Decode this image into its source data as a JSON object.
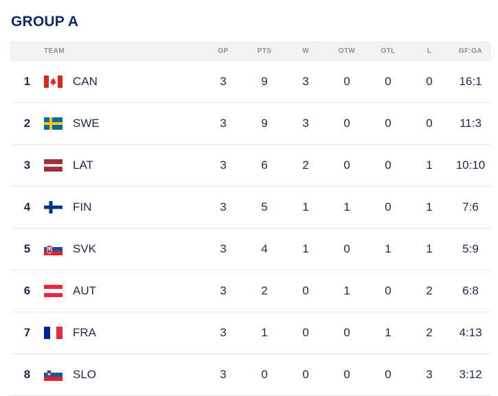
{
  "title": "GROUP A",
  "columns": {
    "team": "TEAM",
    "gp": "GP",
    "pts": "PTS",
    "w": "W",
    "otw": "OTW",
    "otl": "OTL",
    "l": "L",
    "gfga": "GF:GA"
  },
  "rows": [
    {
      "rank": "1",
      "flag": "canada-flag-icon",
      "team": "CAN",
      "gp": "3",
      "pts": "9",
      "w": "3",
      "otw": "0",
      "otl": "0",
      "l": "0",
      "gfga": "16:1"
    },
    {
      "rank": "2",
      "flag": "sweden-flag-icon",
      "team": "SWE",
      "gp": "3",
      "pts": "9",
      "w": "3",
      "otw": "0",
      "otl": "0",
      "l": "0",
      "gfga": "11:3"
    },
    {
      "rank": "3",
      "flag": "latvia-flag-icon",
      "team": "LAT",
      "gp": "3",
      "pts": "6",
      "w": "2",
      "otw": "0",
      "otl": "0",
      "l": "1",
      "gfga": "10:10"
    },
    {
      "rank": "4",
      "flag": "finland-flag-icon",
      "team": "FIN",
      "gp": "3",
      "pts": "5",
      "w": "1",
      "otw": "1",
      "otl": "0",
      "l": "1",
      "gfga": "7:6"
    },
    {
      "rank": "5",
      "flag": "slovakia-flag-icon",
      "team": "SVK",
      "gp": "3",
      "pts": "4",
      "w": "1",
      "otw": "0",
      "otl": "1",
      "l": "1",
      "gfga": "5:9"
    },
    {
      "rank": "6",
      "flag": "austria-flag-icon",
      "team": "AUT",
      "gp": "3",
      "pts": "2",
      "w": "0",
      "otw": "1",
      "otl": "0",
      "l": "2",
      "gfga": "6:8"
    },
    {
      "rank": "7",
      "flag": "france-flag-icon",
      "team": "FRA",
      "gp": "3",
      "pts": "1",
      "w": "0",
      "otw": "0",
      "otl": "1",
      "l": "2",
      "gfga": "4:13"
    },
    {
      "rank": "8",
      "flag": "slovenia-flag-icon",
      "team": "SLO",
      "gp": "3",
      "pts": "0",
      "w": "0",
      "otw": "0",
      "otl": "0",
      "l": "3",
      "gfga": "3:12"
    }
  ]
}
